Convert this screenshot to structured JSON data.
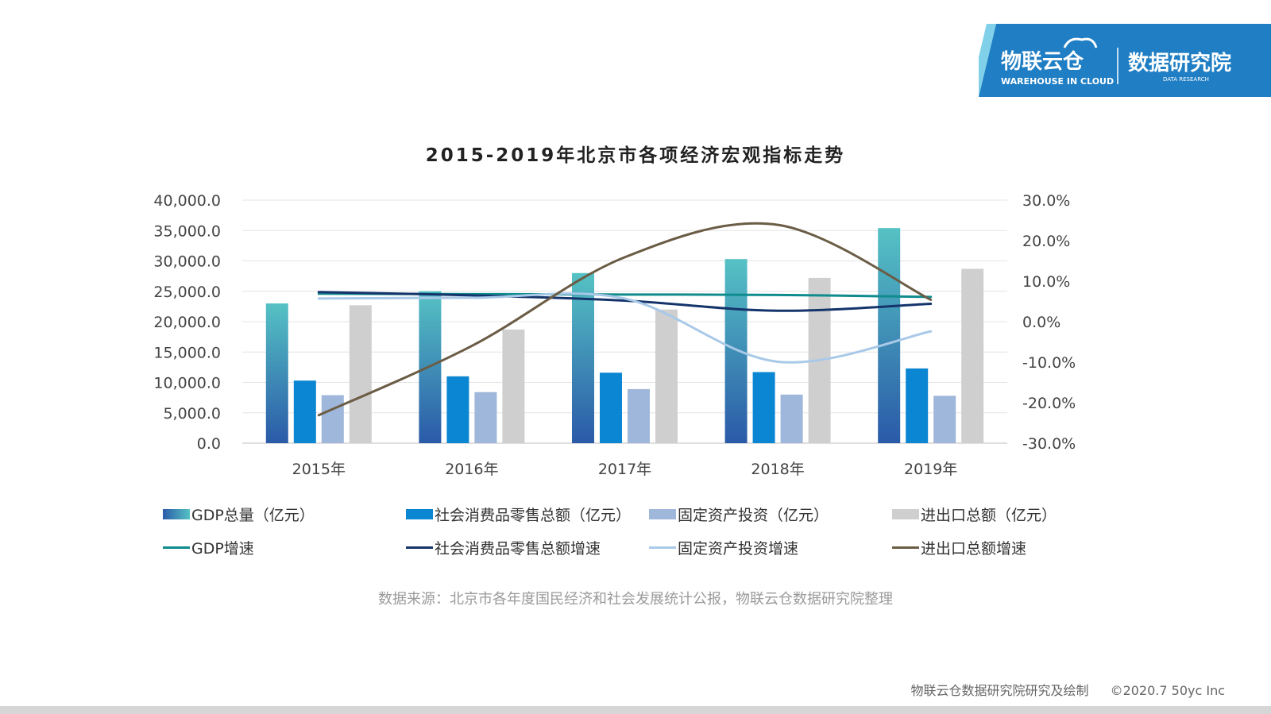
{
  "logo": {
    "brand_cn": "物联云仓",
    "brand_en": "WAREHOUSE IN CLOUD",
    "division_cn": "数据研究院",
    "division_en": "DATA RESEARCH"
  },
  "colors": {
    "gdp_bar_top": "#55c2c4",
    "gdp_bar_bottom": "#2a5aa8",
    "retail_bar": "#0a86d2",
    "investment_bar": "#9fb7da",
    "trade_bar": "#cfcfcf",
    "gdp_growth_line": "#108b8e",
    "retail_growth_line": "#14346b",
    "investment_growth_line": "#a9c9e8",
    "trade_growth_line": "#6b5c45",
    "logo_blue": "#1f7ec4"
  },
  "chart_data": {
    "type": "bar",
    "title": "2015-2019年北京市各项经济宏观指标走势",
    "categories": [
      "2015年",
      "2016年",
      "2017年",
      "2018年",
      "2019年"
    ],
    "y_left": {
      "lim": [
        0,
        40000
      ],
      "ticks": [
        "0.0",
        "5,000.0",
        "10,000.0",
        "15,000.0",
        "20,000.0",
        "25,000.0",
        "30,000.0",
        "35,000.0",
        "40,000.0"
      ]
    },
    "y_right": {
      "lim": [
        -30,
        30
      ],
      "ticks": [
        "-30.0%",
        "-20.0%",
        "-10.0%",
        "0.0%",
        "10.0%",
        "20.0%",
        "30.0%"
      ]
    },
    "grid": true,
    "legend_position": "bottom",
    "series": [
      {
        "name": "GDP总量（亿元）",
        "kind": "bar",
        "axis": "left",
        "values": [
          23000,
          25000,
          28000,
          30300,
          35400
        ]
      },
      {
        "name": "社会消费品零售总额（亿元）",
        "kind": "bar",
        "axis": "left",
        "values": [
          10300,
          11000,
          11600,
          11700,
          12300
        ]
      },
      {
        "name": "固定资产投资（亿元）",
        "kind": "bar",
        "axis": "left",
        "values": [
          7900,
          8400,
          8900,
          8000,
          7800
        ]
      },
      {
        "name": "进出口总额（亿元）",
        "kind": "bar",
        "axis": "left",
        "values": [
          22700,
          18700,
          22000,
          27200,
          28700
        ]
      },
      {
        "name": "GDP增速",
        "kind": "line",
        "axis": "right",
        "values": [
          6.9,
          6.8,
          6.7,
          6.6,
          6.1
        ]
      },
      {
        "name": "社会消费品零售总额增速",
        "kind": "line",
        "axis": "right",
        "values": [
          7.3,
          6.5,
          5.2,
          2.7,
          4.4
        ]
      },
      {
        "name": "固定资产投资增速",
        "kind": "line",
        "axis": "right",
        "values": [
          5.7,
          5.9,
          5.7,
          -9.9,
          -2.4
        ]
      },
      {
        "name": "进出口总额增速",
        "kind": "line",
        "axis": "right",
        "values": [
          -23.1,
          -6.0,
          15.9,
          23.9,
          5.4
        ]
      }
    ]
  },
  "legend_entries": [
    {
      "label": "GDP总量（亿元）"
    },
    {
      "label": "社会消费品零售总额（亿元）"
    },
    {
      "label": "固定资产投资（亿元）"
    },
    {
      "label": "进出口总额（亿元）"
    },
    {
      "label": "GDP增速"
    },
    {
      "label": "社会消费品零售总额增速"
    },
    {
      "label": "固定资产投资增速"
    },
    {
      "label": "进出口总额增速"
    }
  ],
  "source_note": "数据来源：北京市各年度国民经济和社会发展统计公报，物联云仓数据研究院整理",
  "footer": {
    "credit": "物联云仓数据研究院研究及绘制",
    "copyright": "©2020.7 50yc Inc"
  }
}
